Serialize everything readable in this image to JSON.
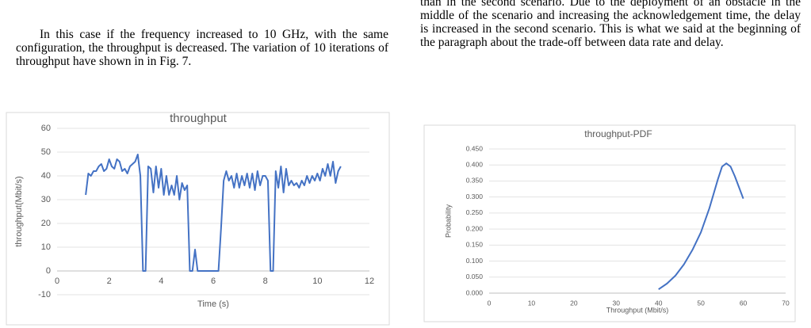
{
  "left_paragraph": "In this case if the frequency increased to 10 GHz, with the same configuration, the throughput is decreased. The variation of 10 iterations of throughput have shown in in Fig. 7.",
  "right_paragraph": "than in the second scenario. Due to the deployment of an obstacle in the middle of the scenario and increasing the acknowledgement time, the delay is increased in the second scenario. This is what we said at the beginning of the paragraph about the trade-off between data rate and delay.",
  "chart_data": [
    {
      "type": "line",
      "title": "throughput",
      "xlabel": "Time (s)",
      "ylabel": "throughput(Mbit/s)",
      "color": "#4472c4",
      "grid": true,
      "xlim": [
        0,
        12
      ],
      "xticks": [
        0,
        2,
        4,
        6,
        8,
        10,
        12
      ],
      "ylim": [
        -10,
        60
      ],
      "yticks": [
        -10,
        0,
        10,
        20,
        30,
        40,
        50,
        60
      ],
      "x": [
        1.1,
        1.2,
        1.3,
        1.4,
        1.5,
        1.6,
        1.7,
        1.8,
        1.9,
        2.0,
        2.1,
        2.2,
        2.3,
        2.4,
        2.5,
        2.6,
        2.7,
        2.8,
        2.9,
        3.0,
        3.1,
        3.2,
        3.3,
        3.4,
        3.5,
        3.6,
        3.7,
        3.8,
        3.9,
        4.0,
        4.1,
        4.2,
        4.3,
        4.4,
        4.5,
        4.6,
        4.7,
        4.8,
        4.9,
        5.0,
        5.1,
        5.2,
        5.3,
        5.4,
        5.5,
        5.6,
        5.7,
        5.8,
        5.9,
        6.0,
        6.1,
        6.2,
        6.3,
        6.4,
        6.5,
        6.6,
        6.7,
        6.8,
        6.9,
        7.0,
        7.1,
        7.2,
        7.3,
        7.4,
        7.5,
        7.6,
        7.7,
        7.8,
        7.9,
        8.0,
        8.1,
        8.2,
        8.3,
        8.4,
        8.5,
        8.6,
        8.7,
        8.8,
        8.9,
        9.0,
        9.1,
        9.2,
        9.3,
        9.4,
        9.5,
        9.6,
        9.7,
        9.8,
        9.9,
        10.0,
        10.1,
        10.2,
        10.3,
        10.4,
        10.5,
        10.6,
        10.7,
        10.8,
        10.9
      ],
      "values": [
        32,
        41,
        40,
        42,
        42,
        44,
        45,
        42,
        43,
        47,
        44,
        43,
        47,
        46,
        42,
        43,
        41,
        44,
        45,
        46,
        49,
        40,
        0,
        0,
        44,
        43,
        33,
        44,
        35,
        43,
        32,
        40,
        32,
        36,
        32,
        40,
        30,
        37,
        34,
        36,
        0,
        0,
        9,
        0,
        0,
        0,
        0,
        0,
        0,
        0,
        0,
        0,
        18,
        38,
        42,
        38,
        40,
        35,
        41,
        35,
        40,
        36,
        41,
        35,
        41,
        34,
        42,
        36,
        40,
        40,
        38,
        0,
        0,
        42,
        35,
        44,
        33,
        43,
        36,
        38,
        36,
        37,
        35,
        38,
        36,
        40,
        37,
        40,
        38,
        41,
        38,
        43,
        40,
        45,
        40,
        46,
        37,
        42,
        44
      ]
    },
    {
      "type": "line",
      "title": "throughput-PDF",
      "xlabel": "Throughput (Mbit/s)",
      "ylabel": "Probability",
      "color": "#4472c4",
      "grid": true,
      "xlim": [
        0,
        70
      ],
      "xticks": [
        0,
        10,
        20,
        30,
        40,
        50,
        60,
        70
      ],
      "ylim": [
        0,
        0.45
      ],
      "yticks": [
        {
          "value": 0,
          "label": "0.000"
        },
        {
          "value": 0.05,
          "label": "0.050"
        },
        {
          "value": 0.1,
          "label": "0.100"
        },
        {
          "value": 0.15,
          "label": "0.150"
        },
        {
          "value": 0.2,
          "label": "0.200"
        },
        {
          "value": 0.25,
          "label": "0.250"
        },
        {
          "value": 0.3,
          "label": "0.300"
        },
        {
          "value": 0.35,
          "label": "0.350"
        },
        {
          "value": 0.4,
          "label": "0.400"
        },
        {
          "value": 0.45,
          "label": "0.450"
        }
      ],
      "x": [
        40,
        42,
        44,
        46,
        48,
        50,
        52,
        54,
        55,
        56,
        57,
        58,
        59,
        60
      ],
      "values": [
        0.012,
        0.03,
        0.055,
        0.09,
        0.135,
        0.19,
        0.265,
        0.355,
        0.395,
        0.405,
        0.395,
        0.365,
        0.33,
        0.295
      ]
    }
  ]
}
